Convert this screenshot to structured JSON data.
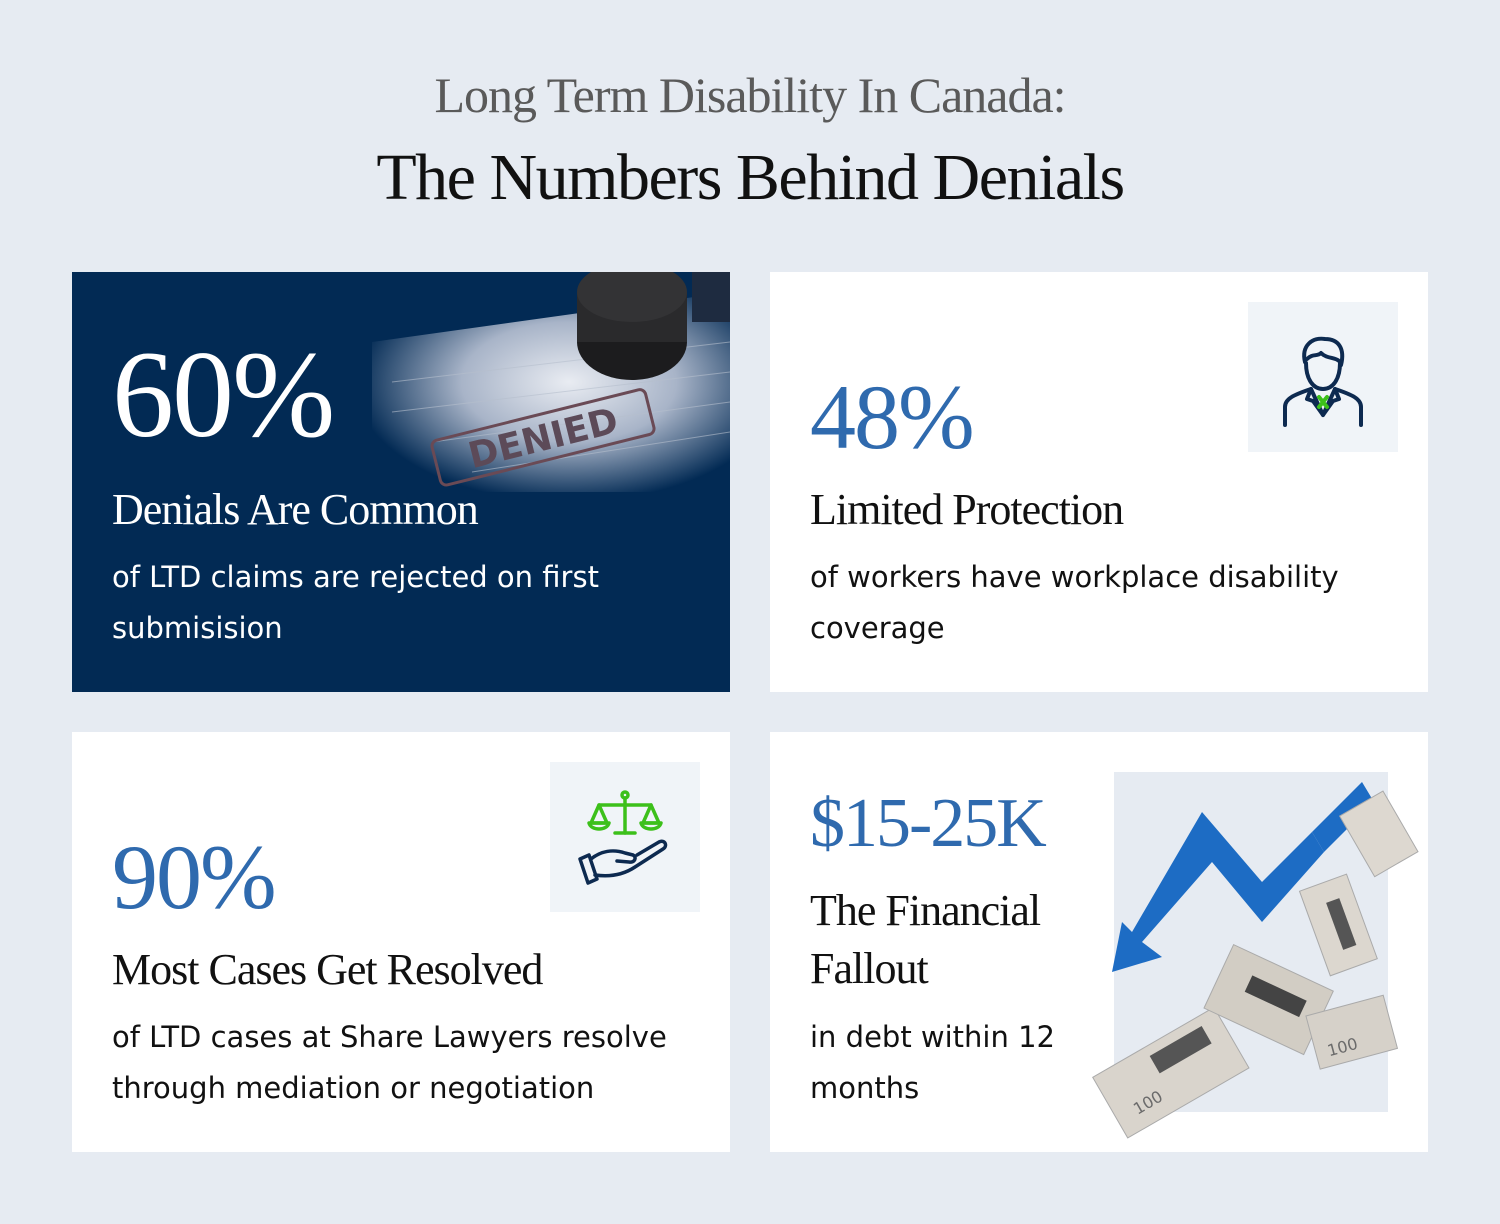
{
  "header": {
    "title_line1": "Long Term Disability In Canada:",
    "title_line2": "The Numbers Behind Denials"
  },
  "cards": [
    {
      "stat": "60%",
      "heading": "Denials Are Common",
      "description": "of LTD claims are rejected on first submisision",
      "image": "gavel-denied-stamp-photo",
      "image_text": "DENIED"
    },
    {
      "stat": "48%",
      "heading": "Limited Protection",
      "description": "of workers have workplace disability coverage",
      "icon": "businessman-icon"
    },
    {
      "stat": "90%",
      "heading": "Most Cases Get Resolved",
      "description": "of LTD cases at Share Lawyers resolve through mediation or negotiation",
      "icon": "scales-in-hand-icon"
    },
    {
      "stat": "$15-25K",
      "heading_line1": "The Financial",
      "heading_line2": "Fallout",
      "description": "in debt within 12 months",
      "image": "falling-arrow-money-photo",
      "image_text": "100"
    }
  ],
  "colors": {
    "background": "#e6ebf2",
    "navy": "#022a54",
    "accent_blue": "#2f6aae",
    "accent_green": "#3cc01a"
  }
}
